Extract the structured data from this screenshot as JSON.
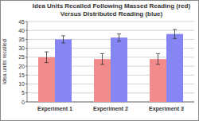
{
  "chart_data": {
    "type": "bar",
    "title": "Idea Units Recalled Following Massed Reading (red)\nVersus Distributed Reading (blue)",
    "y_label": "Idea units recalled",
    "categories": [
      "Experiment 1",
      "Experiment 2",
      "Experiment 3"
    ],
    "series": [
      {
        "color": "#f28b8b",
        "values": [
          25,
          24,
          24
        ],
        "errors": [
          3,
          3,
          3
        ]
      },
      {
        "color": "#8585f5",
        "values": [
          35,
          36,
          38
        ],
        "errors": [
          2,
          2,
          2.5
        ]
      }
    ],
    "ylim": [
      0,
      45
    ],
    "yticks": [
      0,
      5,
      10,
      15,
      20,
      25,
      30,
      35,
      40,
      45
    ],
    "grid": true
  }
}
